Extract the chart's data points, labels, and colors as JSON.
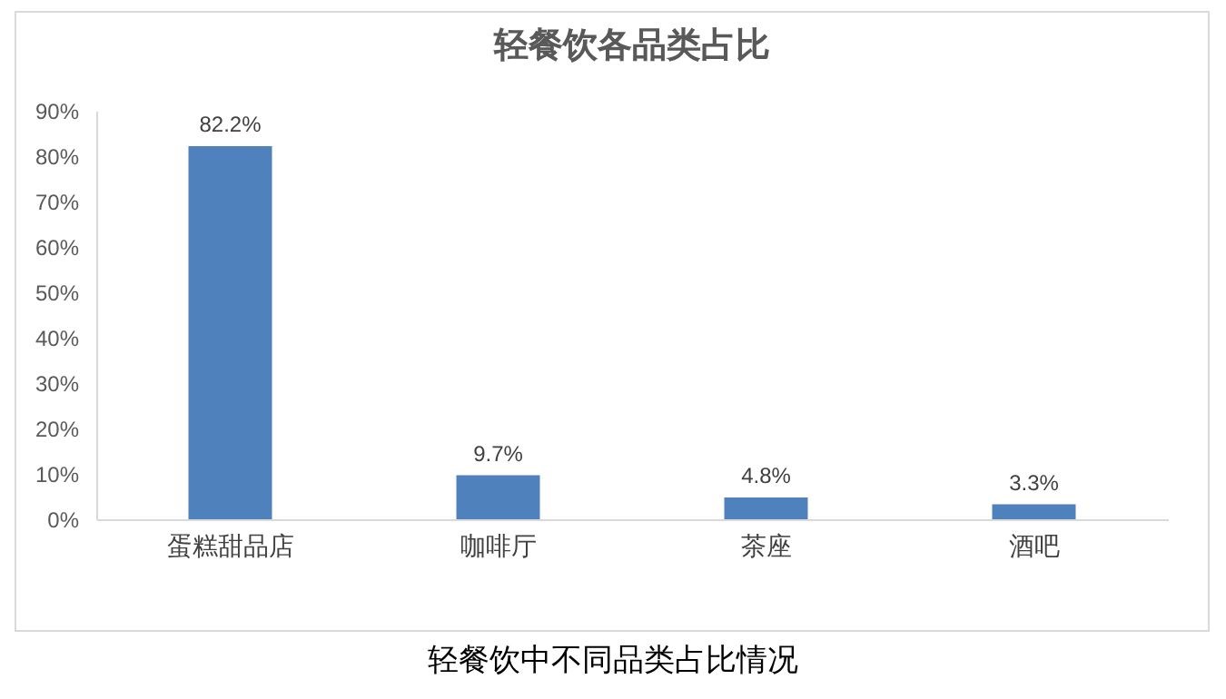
{
  "chart_data": {
    "type": "bar",
    "title": "轻餐饮各品类占比",
    "categories": [
      "蛋糕甜品店",
      "咖啡厅",
      "茶座",
      "酒吧"
    ],
    "values": [
      82.2,
      9.7,
      4.8,
      3.3
    ],
    "value_labels": [
      "82.2%",
      "9.7%",
      "4.8%",
      "3.3%"
    ],
    "color": "#4f81bd",
    "ylim": [
      0,
      90
    ],
    "yticks": [
      {
        "value": 0,
        "label": "0%"
      },
      {
        "value": 10,
        "label": "10%"
      },
      {
        "value": 20,
        "label": "20%"
      },
      {
        "value": 30,
        "label": "30%"
      },
      {
        "value": 40,
        "label": "40%"
      },
      {
        "value": 50,
        "label": "50%"
      },
      {
        "value": 60,
        "label": "60%"
      },
      {
        "value": 70,
        "label": "70%"
      },
      {
        "value": 80,
        "label": "80%"
      },
      {
        "value": 90,
        "label": "90%"
      }
    ],
    "grid": false,
    "annotations": [
      "轻餐饮中不同品类占比情况"
    ]
  }
}
